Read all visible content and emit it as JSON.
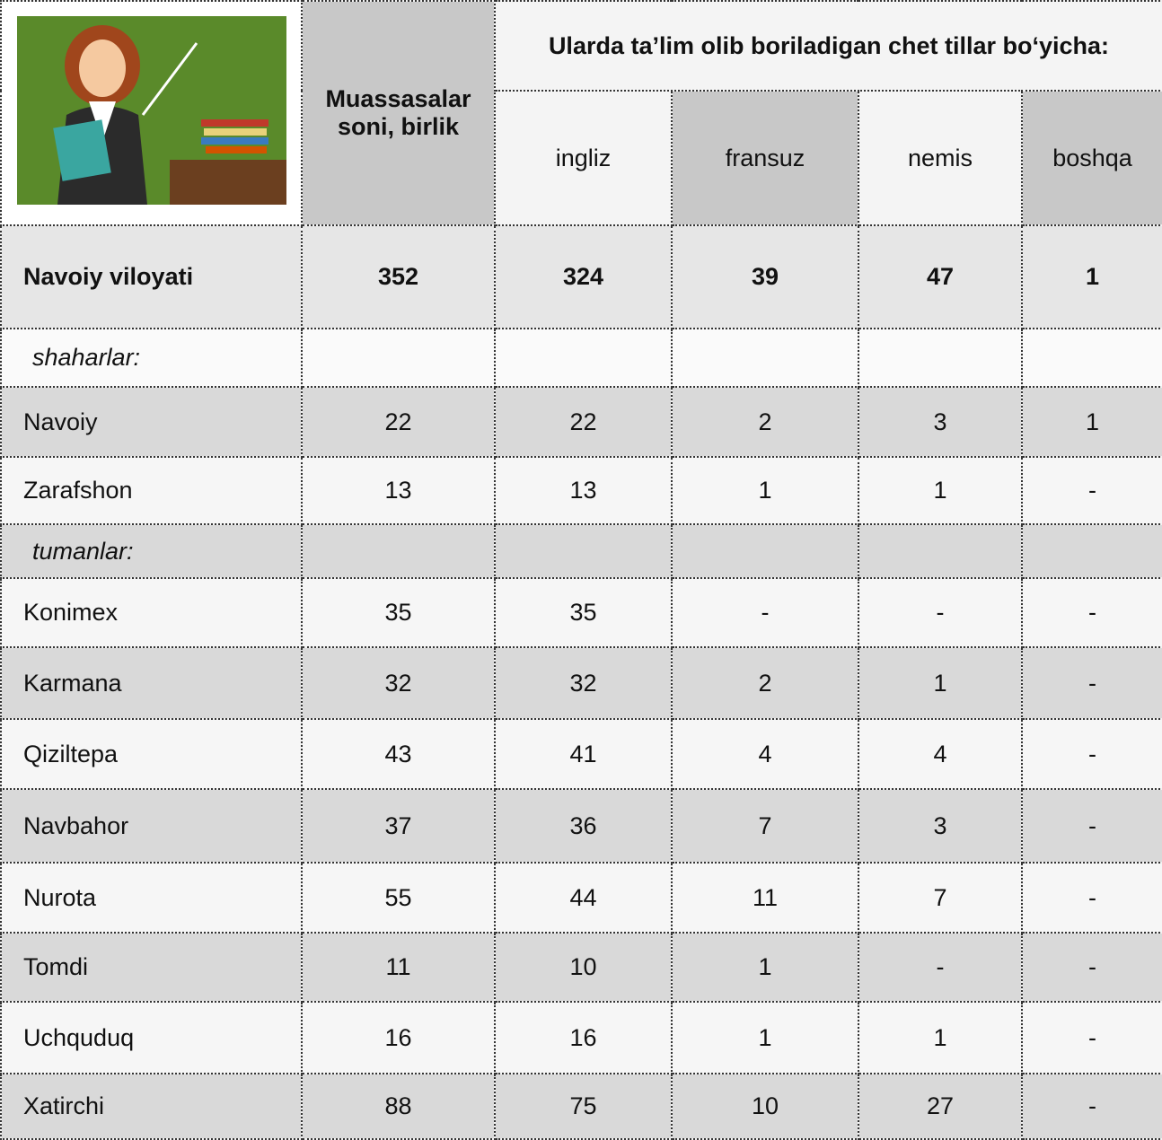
{
  "header": {
    "institutions": "Muassasalar soni, birlik",
    "languages_title": "Ularda ta’lim olib boriladigan chet tillar bo‘yicha:",
    "languages": [
      "ingliz",
      "fransuz",
      "nemis",
      "boshqa"
    ]
  },
  "table": {
    "rows": [
      [
        "Navoiy viloyati",
        352,
        324,
        39,
        47,
        1
      ],
      [
        "shaharlar:"
      ],
      [
        "Navoiy",
        22,
        22,
        2,
        3,
        1
      ],
      [
        "Zarafshon",
        13,
        13,
        1,
        1,
        "-"
      ],
      [
        "tumanlar:"
      ],
      [
        "Konimex",
        35,
        35,
        "-",
        "-",
        "-"
      ],
      [
        "Karmana",
        32,
        32,
        2,
        1,
        "-"
      ],
      [
        "Qiziltepa",
        43,
        41,
        4,
        4,
        "-"
      ],
      [
        "Navbahor",
        37,
        36,
        7,
        3,
        "-"
      ],
      [
        "Nurota",
        55,
        44,
        11,
        7,
        "-"
      ],
      [
        "Tomdi",
        11,
        10,
        1,
        "-",
        "-"
      ],
      [
        "Uchquduq",
        16,
        16,
        1,
        1,
        "-"
      ],
      [
        "Xatirchi",
        88,
        75,
        10,
        27,
        "-"
      ]
    ]
  }
}
